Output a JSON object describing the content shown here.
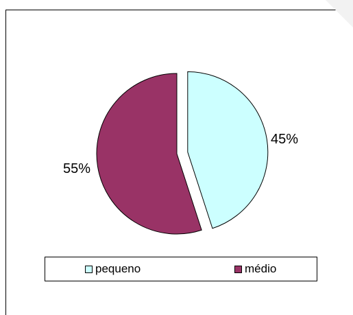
{
  "chart_data": {
    "type": "pie",
    "slices": [
      {
        "label": "pequeno",
        "value": 45,
        "display": "45%",
        "color": "#ccffff",
        "exploded": true
      },
      {
        "label": "médio",
        "value": 55,
        "display": "55%",
        "color": "#993366",
        "exploded": false
      }
    ],
    "start_angle": "12 o'clock, clockwise",
    "legend_position": "bottom"
  },
  "legend": {
    "items": [
      "pequeno",
      "médio"
    ]
  }
}
